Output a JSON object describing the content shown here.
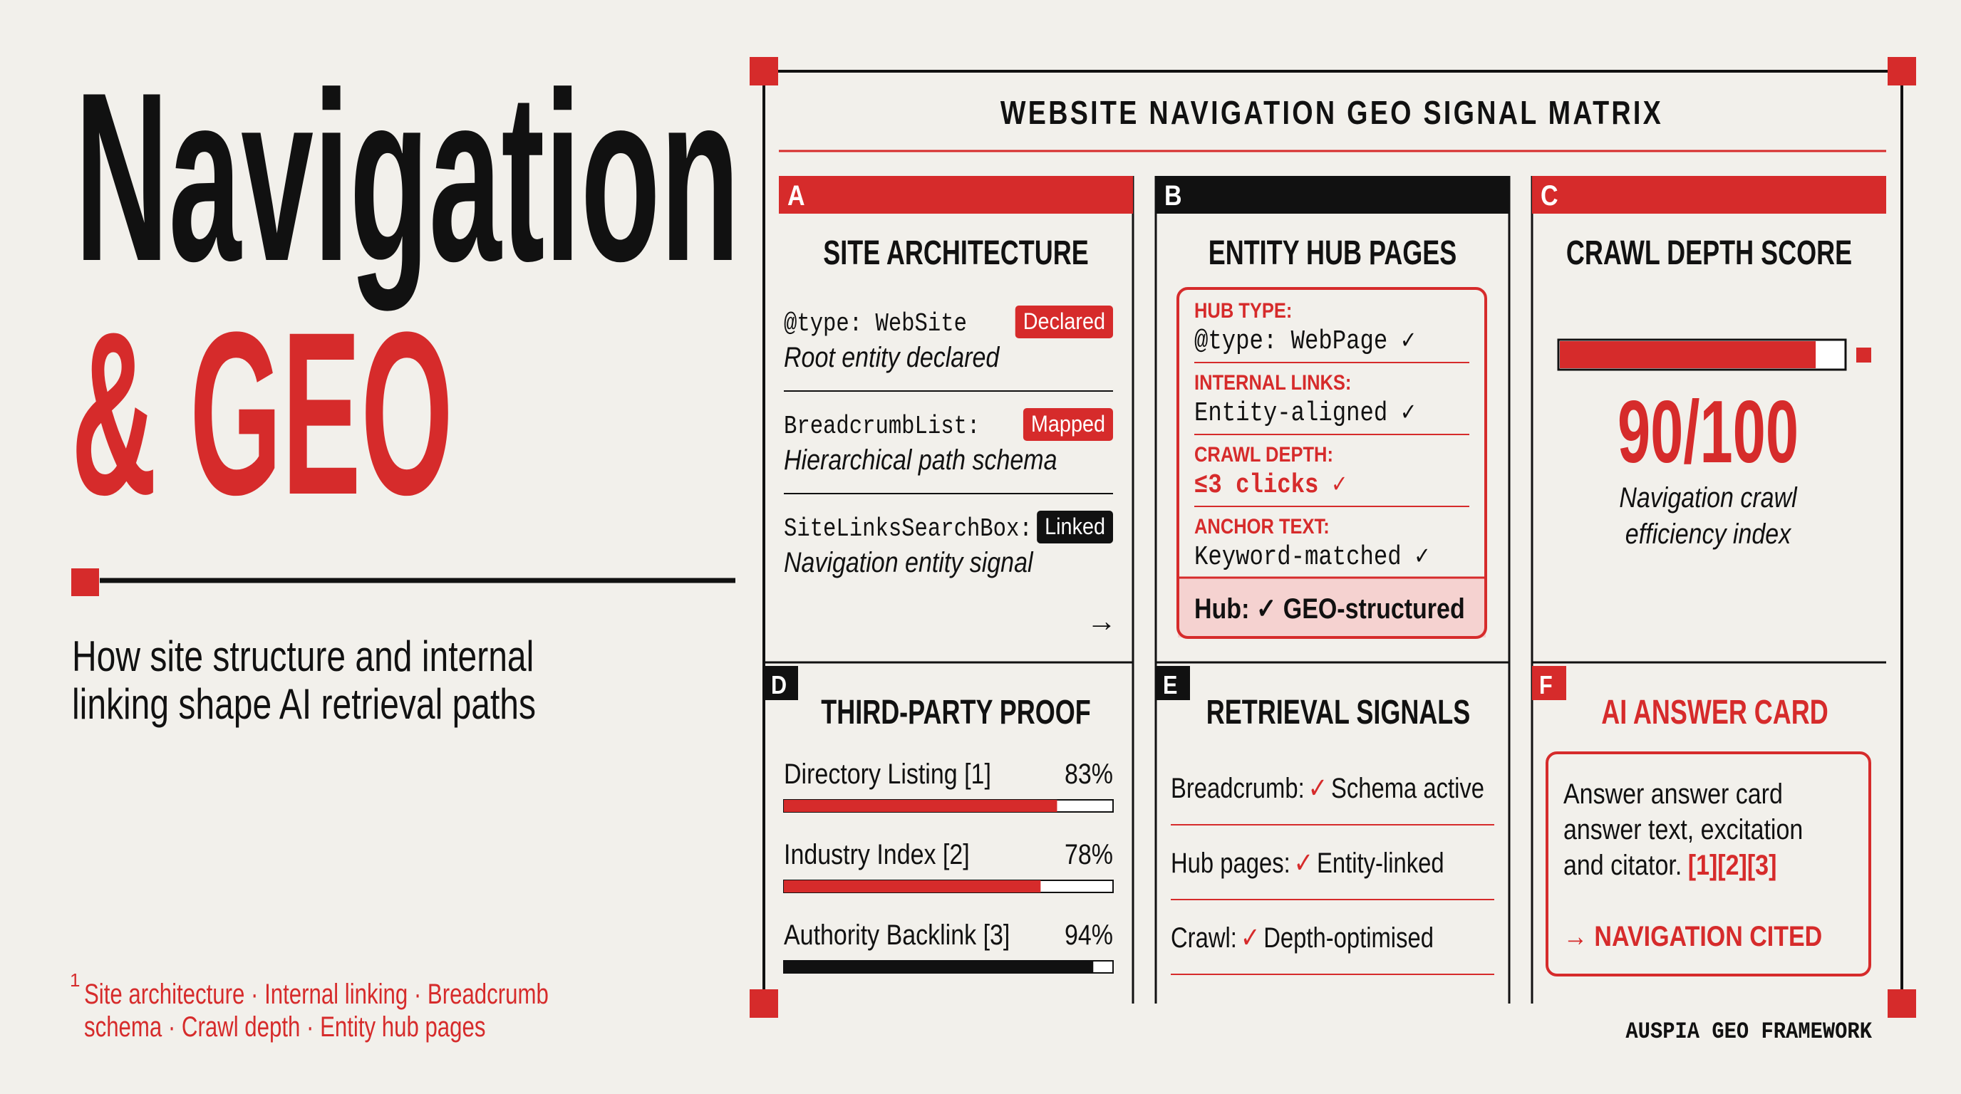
{
  "title_line1": "Navigation",
  "title_line2": "& GEO",
  "subtitle": [
    "How site structure and internal",
    "linking shape AI retrieval paths"
  ],
  "footnote": {
    "mark": "1",
    "lines": [
      "Site architecture · Internal linking · Breadcrumb",
      "schema · Crawl depth · Entity hub pages"
    ]
  },
  "matrix": {
    "title": "WEBSITE NAVIGATION GEO SIGNAL MATRIX",
    "cells": [
      {
        "letter": "A",
        "title": "SITE ARCHITECTURE",
        "items": [
          {
            "code": "@type: WebSite",
            "tag": "Declared",
            "tag_color": "#d62b2b",
            "desc": "Root entity declared"
          },
          {
            "code": "BreadcrumbList:",
            "tag": "Mapped",
            "tag_color": "#d62b2b",
            "desc": "Hierarchical path schema"
          },
          {
            "code": "SiteLinksSearchBox:",
            "tag": "Linked",
            "tag_color": "#111111",
            "desc": "Navigation entity signal"
          }
        ],
        "arrow": "→"
      },
      {
        "letter": "B",
        "title": "ENTITY HUB PAGES",
        "checks": [
          {
            "label": "HUB TYPE:",
            "value": "@type: WebPage ✓"
          },
          {
            "label": "INTERNAL LINKS:",
            "value": "Entity-aligned ✓"
          },
          {
            "label": "CRAWL DEPTH:",
            "value": "≤3 clicks ✓"
          },
          {
            "label": "ANCHOR TEXT:",
            "value": "Keyword-matched ✓"
          }
        ],
        "footer": "Hub: ✓ GEO-structured"
      },
      {
        "letter": "C",
        "title": "CRAWL DEPTH SCORE",
        "score": {
          "label": "90/100",
          "value": 90,
          "max": 100
        },
        "caption": [
          "Navigation crawl",
          "efficiency index"
        ]
      },
      {
        "letter": "D",
        "title": "THIRD-PARTY PROOF",
        "bars": [
          {
            "label": "Directory Listing [1]",
            "percent": {
              "value": 83,
              "label": "83%"
            },
            "color": "#d62b2b"
          },
          {
            "label": "Industry Index [2]",
            "percent": {
              "value": 78,
              "label": "78%"
            },
            "color": "#d62b2b"
          },
          {
            "label": "Authority Backlink [3]",
            "percent": {
              "value": 94,
              "label": "94%"
            },
            "color": "#111111"
          }
        ]
      },
      {
        "letter": "E",
        "title": "RETRIEVAL SIGNALS",
        "signals": [
          {
            "key": "Breadcrumb:",
            "check": "✓",
            "value": "Schema active"
          },
          {
            "key": "Hub pages:",
            "check": "✓",
            "value": "Entity-linked"
          },
          {
            "key": "Crawl:",
            "check": "✓",
            "value": "Depth-optimised"
          }
        ]
      },
      {
        "letter": "F",
        "title": "AI ANSWER CARD",
        "text": [
          "Answer answer card",
          "answer text, excitation",
          "and citator."
        ],
        "refs": "[1][2][3]",
        "cta": "→ NAVIGATION CITED"
      }
    ]
  },
  "brand": "AUSPIA GEO FRAMEWORK"
}
